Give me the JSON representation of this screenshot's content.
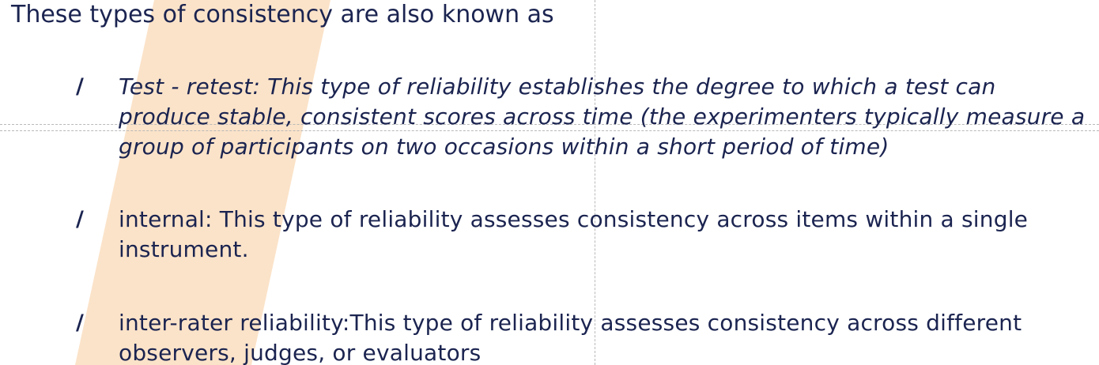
{
  "intro": "These types of consistency are also known as",
  "bullet_glyph": "/",
  "items": [
    {
      "text": "Test - retest: This type of reliability establishes the degree to which a test can produce stable, consistent scores across time (the experimenters typically measure a group of participants on two occasions within a short period of time)"
    },
    {
      "text": "internal: This type of reliability assesses consistency across items within a single instrument."
    },
    {
      "text": " inter-rater reliability:This type of reliability assesses consistency across different observers, judges, or evaluators"
    }
  ],
  "colors": {
    "text": "#1b2450",
    "stripe": "#fbe3c9",
    "background": "#ffffff"
  }
}
